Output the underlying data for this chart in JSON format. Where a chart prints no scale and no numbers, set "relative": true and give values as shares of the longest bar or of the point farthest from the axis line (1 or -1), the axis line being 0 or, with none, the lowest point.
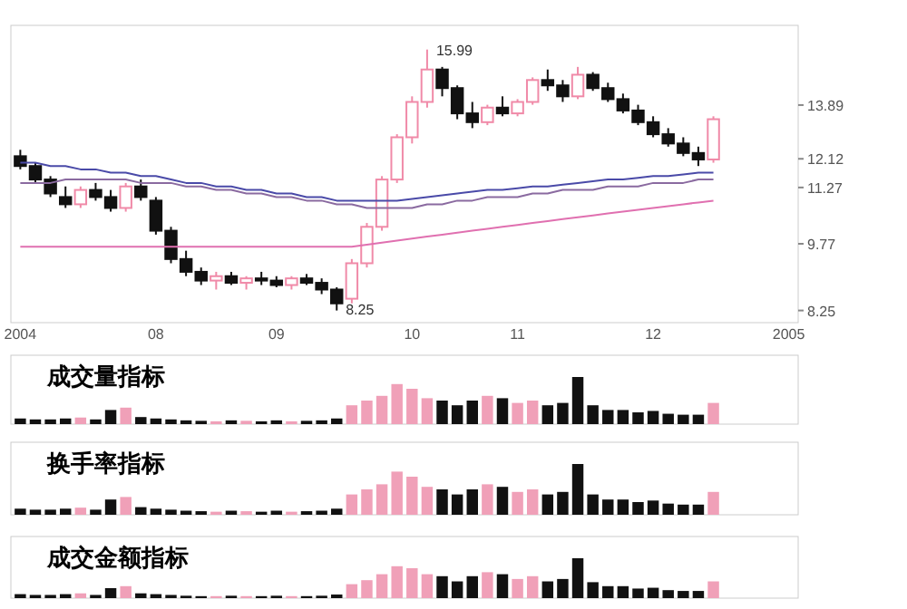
{
  "chart_data": [
    {
      "type": "candlestick",
      "log": true,
      "ylim": [
        8.0,
        17.0
      ],
      "yticks": [
        8.25,
        9.77,
        11.27,
        12.12,
        13.89
      ],
      "annotations": [
        "15.99",
        "8.25"
      ],
      "categories": [
        "2004",
        null,
        null,
        null,
        null,
        null,
        null,
        null,
        null,
        "08",
        null,
        null,
        null,
        null,
        null,
        null,
        null,
        "09",
        null,
        null,
        null,
        null,
        null,
        null,
        null,
        null,
        "10",
        null,
        null,
        null,
        null,
        null,
        null,
        "11",
        null,
        null,
        null,
        null,
        null,
        null,
        null,
        null,
        "12",
        null,
        null,
        null,
        null,
        null,
        null,
        null,
        null,
        "2005"
      ],
      "ohlc": [
        [
          12.2,
          12.4,
          11.8,
          11.9
        ],
        [
          11.9,
          12.0,
          11.4,
          11.5
        ],
        [
          11.5,
          11.6,
          11.0,
          11.1
        ],
        [
          11.0,
          11.3,
          10.7,
          10.8
        ],
        [
          10.8,
          11.3,
          10.7,
          11.2
        ],
        [
          11.2,
          11.4,
          10.9,
          11.0
        ],
        [
          11.0,
          11.2,
          10.6,
          10.7
        ],
        [
          10.7,
          11.4,
          10.6,
          11.3
        ],
        [
          11.3,
          11.5,
          10.9,
          11.0
        ],
        [
          10.9,
          11.0,
          10.0,
          10.1
        ],
        [
          10.1,
          10.2,
          9.3,
          9.4
        ],
        [
          9.4,
          9.6,
          9.0,
          9.1
        ],
        [
          9.1,
          9.2,
          8.8,
          8.9
        ],
        [
          8.9,
          9.1,
          8.7,
          9.0
        ],
        [
          9.0,
          9.1,
          8.8,
          8.85
        ],
        [
          8.85,
          9.0,
          8.7,
          8.95
        ],
        [
          8.95,
          9.1,
          8.8,
          8.9
        ],
        [
          8.9,
          9.0,
          8.75,
          8.8
        ],
        [
          8.8,
          9.0,
          8.7,
          8.95
        ],
        [
          8.95,
          9.05,
          8.8,
          8.85
        ],
        [
          8.85,
          8.95,
          8.6,
          8.7
        ],
        [
          8.7,
          8.75,
          8.25,
          8.4
        ],
        [
          8.5,
          9.4,
          8.4,
          9.3
        ],
        [
          9.3,
          10.3,
          9.2,
          10.2
        ],
        [
          10.2,
          11.6,
          10.1,
          11.5
        ],
        [
          11.5,
          12.9,
          11.4,
          12.8
        ],
        [
          12.8,
          14.2,
          12.6,
          14.0
        ],
        [
          14.0,
          15.99,
          13.8,
          15.2
        ],
        [
          15.2,
          15.3,
          14.2,
          14.5
        ],
        [
          14.5,
          14.6,
          13.4,
          13.6
        ],
        [
          13.6,
          14.0,
          13.1,
          13.3
        ],
        [
          13.3,
          13.9,
          13.2,
          13.8
        ],
        [
          13.8,
          14.2,
          13.5,
          13.6
        ],
        [
          13.6,
          14.1,
          13.5,
          14.0
        ],
        [
          14.0,
          14.9,
          13.9,
          14.8
        ],
        [
          14.8,
          15.2,
          14.4,
          14.6
        ],
        [
          14.6,
          14.8,
          14.0,
          14.2
        ],
        [
          14.2,
          15.3,
          14.1,
          15.0
        ],
        [
          15.0,
          15.1,
          14.4,
          14.5
        ],
        [
          14.5,
          14.7,
          14.0,
          14.1
        ],
        [
          14.1,
          14.3,
          13.6,
          13.7
        ],
        [
          13.7,
          13.9,
          13.2,
          13.3
        ],
        [
          13.3,
          13.5,
          12.8,
          12.9
        ],
        [
          12.9,
          13.1,
          12.5,
          12.6
        ],
        [
          12.6,
          12.8,
          12.2,
          12.3
        ],
        [
          12.3,
          12.5,
          11.9,
          12.1
        ],
        [
          12.1,
          13.5,
          12.0,
          13.4
        ],
        null,
        null,
        null,
        null,
        null
      ],
      "series": [
        {
          "type": "line",
          "color": "#4a4aa8",
          "values": [
            12.0,
            12.0,
            11.9,
            11.9,
            11.8,
            11.8,
            11.7,
            11.7,
            11.6,
            11.6,
            11.5,
            11.4,
            11.4,
            11.3,
            11.3,
            11.2,
            11.2,
            11.1,
            11.1,
            11.0,
            11.0,
            10.9,
            10.9,
            10.9,
            10.9,
            10.9,
            10.95,
            11.0,
            11.05,
            11.1,
            11.15,
            11.2,
            11.2,
            11.25,
            11.3,
            11.3,
            11.35,
            11.4,
            11.45,
            11.5,
            11.5,
            11.55,
            11.6,
            11.6,
            11.65,
            11.7,
            11.7,
            null,
            null,
            null,
            null,
            null
          ]
        },
        {
          "type": "line",
          "color": "#8a6aa0",
          "values": [
            11.4,
            11.4,
            11.4,
            11.5,
            11.5,
            11.5,
            11.5,
            11.5,
            11.4,
            11.4,
            11.4,
            11.3,
            11.3,
            11.2,
            11.2,
            11.1,
            11.1,
            11.0,
            11.0,
            10.9,
            10.9,
            10.8,
            10.8,
            10.7,
            10.7,
            10.7,
            10.7,
            10.8,
            10.8,
            10.9,
            10.9,
            11.0,
            11.0,
            11.0,
            11.1,
            11.1,
            11.2,
            11.2,
            11.2,
            11.3,
            11.3,
            11.3,
            11.4,
            11.4,
            11.4,
            11.5,
            11.5,
            null,
            null,
            null,
            null,
            null
          ]
        },
        {
          "type": "line",
          "color": "#e070b0",
          "values": [
            9.7,
            9.7,
            9.7,
            9.7,
            9.7,
            9.7,
            9.7,
            9.7,
            9.7,
            9.7,
            9.7,
            9.7,
            9.7,
            9.7,
            9.7,
            9.7,
            9.7,
            9.7,
            9.7,
            9.7,
            9.7,
            9.7,
            9.7,
            9.75,
            9.8,
            9.85,
            9.9,
            9.95,
            10.0,
            10.05,
            10.1,
            10.15,
            10.2,
            10.25,
            10.3,
            10.35,
            10.4,
            10.45,
            10.5,
            10.55,
            10.6,
            10.65,
            10.7,
            10.75,
            10.8,
            10.85,
            10.9,
            null,
            null,
            null,
            null,
            null
          ]
        }
      ]
    },
    {
      "type": "bar",
      "relative": true,
      "title": "成交量指标",
      "categories": [
        null,
        null,
        null,
        null,
        null,
        null,
        null,
        null,
        null,
        null,
        null,
        null,
        null,
        null,
        null,
        null,
        null,
        null,
        null,
        null,
        null,
        null,
        null,
        null,
        null,
        null,
        null,
        null,
        null,
        null,
        null,
        null,
        null,
        null,
        null,
        null,
        null,
        null,
        null,
        null,
        null,
        null,
        null,
        null,
        null,
        null,
        null,
        null,
        null,
        null,
        null,
        null
      ],
      "values": [
        0.12,
        0.1,
        0.1,
        0.12,
        0.14,
        0.1,
        0.3,
        0.35,
        0.15,
        0.12,
        0.1,
        0.08,
        0.07,
        0.06,
        0.08,
        0.07,
        0.06,
        0.08,
        0.06,
        0.07,
        0.08,
        0.12,
        0.4,
        0.5,
        0.6,
        0.85,
        0.75,
        0.55,
        0.5,
        0.4,
        0.5,
        0.6,
        0.55,
        0.45,
        0.5,
        0.4,
        0.45,
        1.0,
        0.4,
        0.3,
        0.3,
        0.25,
        0.28,
        0.22,
        0.2,
        0.2,
        0.45,
        null,
        null,
        null,
        null,
        null
      ],
      "colors": [
        "#111111",
        "#111111",
        "#111111",
        "#111111",
        "#f0a0b8",
        "#111111",
        "#111111",
        "#f0a0b8",
        "#111111",
        "#111111",
        "#111111",
        "#111111",
        "#111111",
        "#f0a0b8",
        "#111111",
        "#f0a0b8",
        "#111111",
        "#111111",
        "#f0a0b8",
        "#111111",
        "#111111",
        "#111111",
        "#f0a0b8",
        "#f0a0b8",
        "#f0a0b8",
        "#f0a0b8",
        "#f0a0b8",
        "#f0a0b8",
        "#111111",
        "#111111",
        "#111111",
        "#f0a0b8",
        "#111111",
        "#f0a0b8",
        "#f0a0b8",
        "#111111",
        "#111111",
        "#111111",
        "#111111",
        "#111111",
        "#111111",
        "#111111",
        "#111111",
        "#111111",
        "#111111",
        "#111111",
        "#f0a0b8",
        null,
        null,
        null,
        null,
        null
      ]
    },
    {
      "type": "bar",
      "relative": true,
      "title": "换手率指标",
      "categories": [
        null,
        null,
        null,
        null,
        null,
        null,
        null,
        null,
        null,
        null,
        null,
        null,
        null,
        null,
        null,
        null,
        null,
        null,
        null,
        null,
        null,
        null,
        null,
        null,
        null,
        null,
        null,
        null,
        null,
        null,
        null,
        null,
        null,
        null,
        null,
        null,
        null,
        null,
        null,
        null,
        null,
        null,
        null,
        null,
        null,
        null,
        null,
        null,
        null,
        null,
        null,
        null
      ],
      "values": [
        0.12,
        0.1,
        0.1,
        0.12,
        0.14,
        0.1,
        0.3,
        0.35,
        0.15,
        0.12,
        0.1,
        0.08,
        0.07,
        0.06,
        0.08,
        0.07,
        0.06,
        0.08,
        0.06,
        0.07,
        0.08,
        0.12,
        0.4,
        0.5,
        0.6,
        0.85,
        0.75,
        0.55,
        0.5,
        0.4,
        0.5,
        0.6,
        0.55,
        0.45,
        0.5,
        0.4,
        0.45,
        1.0,
        0.4,
        0.3,
        0.3,
        0.25,
        0.28,
        0.22,
        0.2,
        0.2,
        0.45,
        null,
        null,
        null,
        null,
        null
      ],
      "colors": [
        "#111111",
        "#111111",
        "#111111",
        "#111111",
        "#f0a0b8",
        "#111111",
        "#111111",
        "#f0a0b8",
        "#111111",
        "#111111",
        "#111111",
        "#111111",
        "#111111",
        "#f0a0b8",
        "#111111",
        "#f0a0b8",
        "#111111",
        "#111111",
        "#f0a0b8",
        "#111111",
        "#111111",
        "#111111",
        "#f0a0b8",
        "#f0a0b8",
        "#f0a0b8",
        "#f0a0b8",
        "#f0a0b8",
        "#f0a0b8",
        "#111111",
        "#111111",
        "#111111",
        "#f0a0b8",
        "#111111",
        "#f0a0b8",
        "#f0a0b8",
        "#111111",
        "#111111",
        "#111111",
        "#111111",
        "#111111",
        "#111111",
        "#111111",
        "#111111",
        "#111111",
        "#111111",
        "#111111",
        "#f0a0b8",
        null,
        null,
        null,
        null,
        null
      ]
    },
    {
      "type": "bar",
      "relative": true,
      "title": "成交金额指标",
      "categories": [
        null,
        null,
        null,
        null,
        null,
        null,
        null,
        null,
        null,
        null,
        null,
        null,
        null,
        null,
        null,
        null,
        null,
        null,
        null,
        null,
        null,
        null,
        null,
        null,
        null,
        null,
        null,
        null,
        null,
        null,
        null,
        null,
        null,
        null,
        null,
        null,
        null,
        null,
        null,
        null,
        null,
        null,
        null,
        null,
        null,
        null,
        null,
        null,
        null,
        null,
        null,
        null
      ],
      "values": [
        0.1,
        0.08,
        0.08,
        0.1,
        0.12,
        0.08,
        0.25,
        0.3,
        0.12,
        0.1,
        0.08,
        0.06,
        0.05,
        0.05,
        0.06,
        0.05,
        0.05,
        0.06,
        0.05,
        0.05,
        0.06,
        0.09,
        0.35,
        0.45,
        0.6,
        0.8,
        0.75,
        0.6,
        0.55,
        0.42,
        0.55,
        0.65,
        0.6,
        0.48,
        0.55,
        0.42,
        0.48,
        1.0,
        0.4,
        0.3,
        0.3,
        0.24,
        0.26,
        0.2,
        0.18,
        0.18,
        0.42,
        null,
        null,
        null,
        null,
        null
      ],
      "colors": [
        "#111111",
        "#111111",
        "#111111",
        "#111111",
        "#f0a0b8",
        "#111111",
        "#111111",
        "#f0a0b8",
        "#111111",
        "#111111",
        "#111111",
        "#111111",
        "#111111",
        "#f0a0b8",
        "#111111",
        "#f0a0b8",
        "#111111",
        "#111111",
        "#f0a0b8",
        "#111111",
        "#111111",
        "#111111",
        "#f0a0b8",
        "#f0a0b8",
        "#f0a0b8",
        "#f0a0b8",
        "#f0a0b8",
        "#f0a0b8",
        "#111111",
        "#111111",
        "#111111",
        "#f0a0b8",
        "#111111",
        "#f0a0b8",
        "#f0a0b8",
        "#111111",
        "#111111",
        "#111111",
        "#111111",
        "#111111",
        "#111111",
        "#111111",
        "#111111",
        "#111111",
        "#111111",
        "#111111",
        "#f0a0b8",
        null,
        null,
        null,
        null,
        null
      ]
    }
  ]
}
